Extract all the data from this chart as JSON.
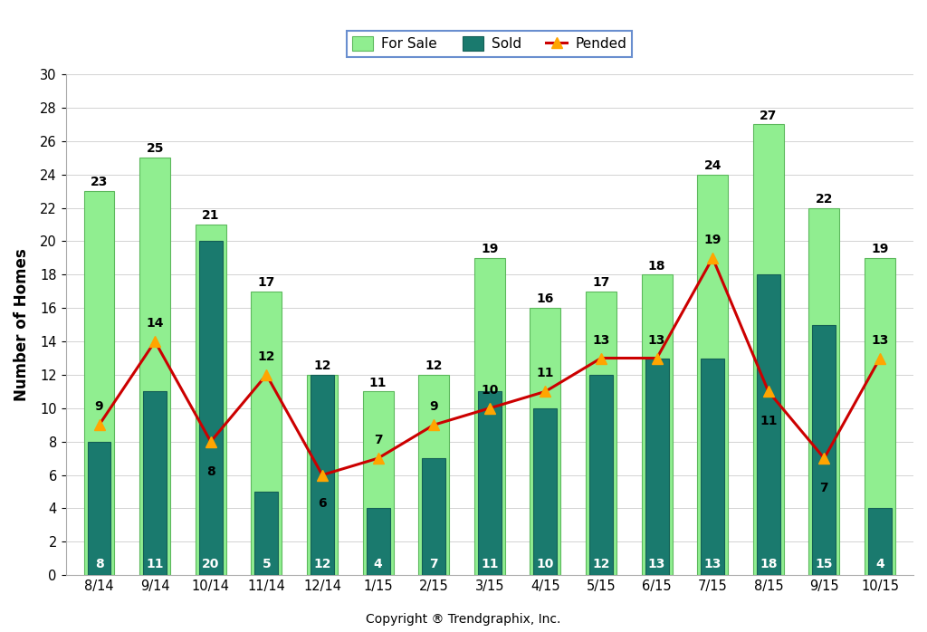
{
  "categories": [
    "8/14",
    "9/14",
    "10/14",
    "11/14",
    "12/14",
    "1/15",
    "2/15",
    "3/15",
    "4/15",
    "5/15",
    "6/15",
    "7/15",
    "8/15",
    "9/15",
    "10/15"
  ],
  "for_sale": [
    23,
    25,
    21,
    17,
    12,
    11,
    12,
    19,
    16,
    17,
    18,
    24,
    27,
    22,
    19
  ],
  "sold": [
    8,
    11,
    20,
    5,
    12,
    4,
    7,
    11,
    10,
    12,
    13,
    13,
    18,
    15,
    4
  ],
  "pended": [
    9,
    14,
    8,
    12,
    6,
    7,
    9,
    10,
    11,
    13,
    13,
    19,
    11,
    7,
    13
  ],
  "for_sale_color": "#90EE90",
  "for_sale_edge": "#5cb85c",
  "sold_color": "#1a7a6e",
  "sold_edge": "#145f56",
  "pended_color": "#cc0000",
  "pended_marker_color": "#FFA500",
  "ylabel": "Number of Homes",
  "copyright_text": "Copyright ® Trendgraphix, Inc.",
  "ylim": [
    0,
    30
  ],
  "yticks": [
    0,
    2,
    4,
    6,
    8,
    10,
    12,
    14,
    16,
    18,
    20,
    22,
    24,
    26,
    28,
    30
  ],
  "legend_for_sale": "For Sale",
  "legend_sold": "Sold",
  "legend_pended": "Pended",
  "fs_bar_width": 0.55,
  "sold_bar_width": 0.42,
  "background_color": "#ffffff",
  "legend_box_color": "#4472c4",
  "fs_label_fontsize": 10,
  "sold_label_fontsize": 10,
  "pended_label_fontsize": 10
}
